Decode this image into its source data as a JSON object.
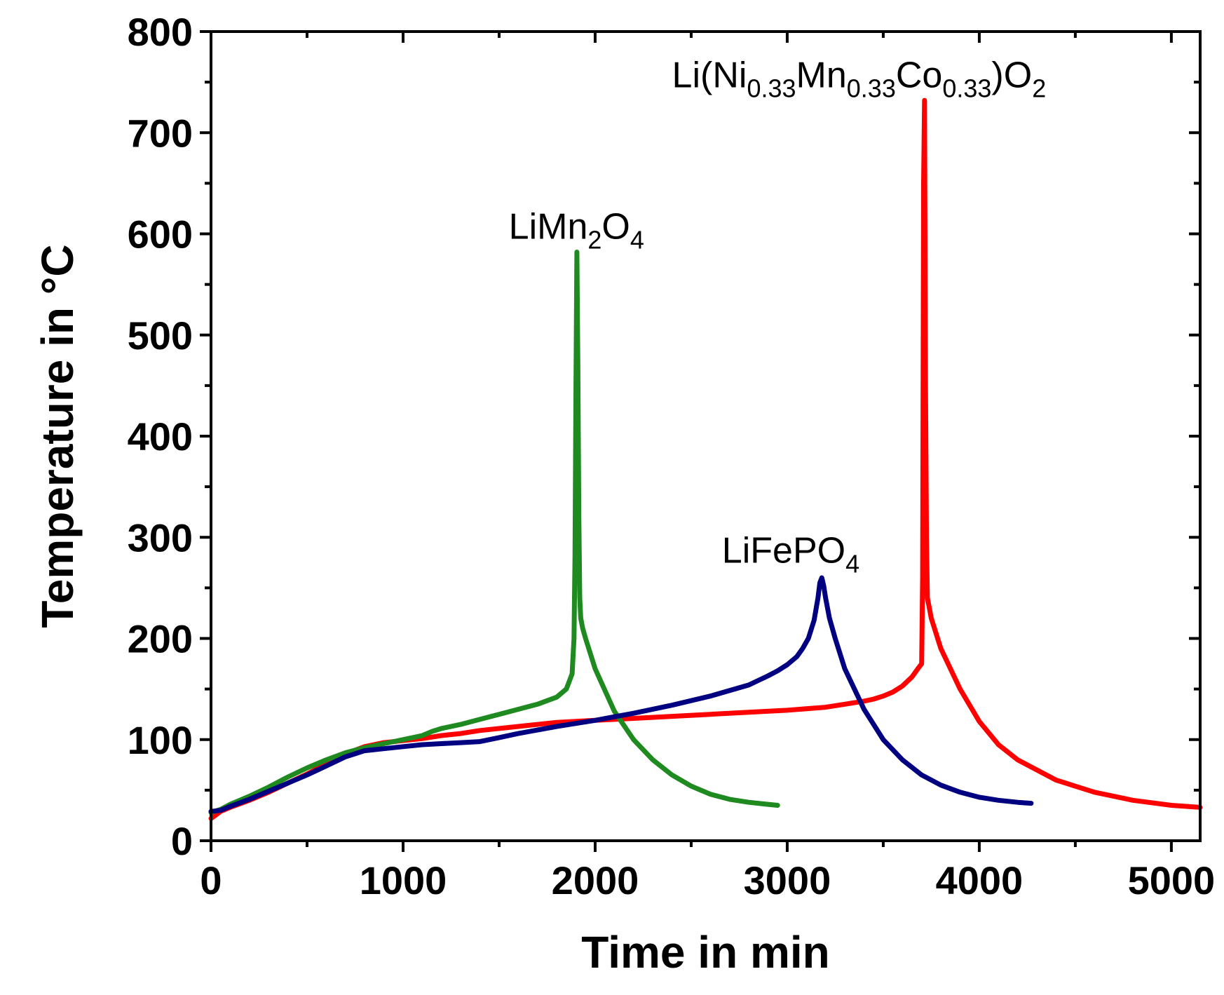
{
  "chart_data": {
    "type": "line",
    "title": "",
    "xlabel": "Time in min",
    "ylabel": "Temperature in °C",
    "xlim": [
      0,
      5150
    ],
    "ylim": [
      0,
      800
    ],
    "xticks": [
      0,
      1000,
      2000,
      3000,
      4000,
      5000
    ],
    "xtick_labels": [
      "0",
      "1000",
      "2000",
      "3000",
      "4000",
      "5000"
    ],
    "yticks": [
      0,
      100,
      200,
      300,
      400,
      500,
      600,
      700,
      800
    ],
    "ytick_labels": [
      "0",
      "100",
      "200",
      "300",
      "400",
      "500",
      "600",
      "700",
      "800"
    ],
    "x_minor_step": 500,
    "y_minor_step": 50,
    "grid": false,
    "legend": "none",
    "series": [
      {
        "name": "Li(Ni0.33Mn0.33Co0.33)O2",
        "label_parts": [
          {
            "t": "Li(Ni",
            "sub": false
          },
          {
            "t": "0.33",
            "sub": true
          },
          {
            "t": "Mn",
            "sub": false
          },
          {
            "t": "0.33",
            "sub": true
          },
          {
            "t": "Co",
            "sub": false
          },
          {
            "t": "0.33",
            "sub": true
          },
          {
            "t": ")O",
            "sub": false
          },
          {
            "t": "2",
            "sub": true
          }
        ],
        "label_at": [
          2400,
          745
        ],
        "color": "#ff0000",
        "x": [
          0,
          50,
          100,
          200,
          300,
          400,
          500,
          600,
          700,
          800,
          900,
          1000,
          1100,
          1200,
          1300,
          1400,
          1600,
          1800,
          2000,
          2200,
          2400,
          2600,
          2800,
          3000,
          3200,
          3300,
          3400,
          3450,
          3500,
          3550,
          3600,
          3650,
          3680,
          3700,
          3705,
          3710,
          3715,
          3720,
          3725,
          3730,
          3740,
          3750,
          3800,
          3900,
          4000,
          4100,
          4200,
          4400,
          4600,
          4800,
          5000,
          5150
        ],
        "y": [
          22,
          29,
          33,
          40,
          48,
          57,
          66,
          76,
          86,
          93,
          97,
          99,
          101,
          104,
          106,
          109,
          113,
          117,
          119,
          121,
          123,
          125,
          127,
          129,
          132,
          135,
          138,
          140,
          143,
          147,
          153,
          162,
          170,
          175,
          260,
          650,
          732,
          450,
          300,
          240,
          230,
          220,
          190,
          150,
          118,
          95,
          80,
          60,
          48,
          40,
          35,
          33
        ]
      },
      {
        "name": "LiMn2O4",
        "label_parts": [
          {
            "t": "LiMn",
            "sub": false
          },
          {
            "t": "2",
            "sub": true
          },
          {
            "t": "O",
            "sub": false
          },
          {
            "t": "4",
            "sub": true
          }
        ],
        "label_at": [
          1550,
          595
        ],
        "color": "#1f8a1f",
        "x": [
          0,
          50,
          100,
          200,
          300,
          400,
          500,
          600,
          700,
          800,
          900,
          1000,
          1100,
          1150,
          1200,
          1300,
          1400,
          1500,
          1600,
          1700,
          1800,
          1850,
          1880,
          1890,
          1895,
          1900,
          1905,
          1910,
          1915,
          1920,
          1925,
          1935,
          1950,
          2000,
          2100,
          2200,
          2300,
          2400,
          2500,
          2600,
          2700,
          2800,
          2900,
          2950
        ],
        "y": [
          28,
          31,
          36,
          44,
          53,
          63,
          72,
          80,
          87,
          92,
          96,
          100,
          104,
          108,
          111,
          115,
          120,
          125,
          130,
          135,
          142,
          150,
          165,
          200,
          280,
          450,
          582,
          470,
          320,
          240,
          220,
          210,
          200,
          170,
          128,
          100,
          80,
          65,
          54,
          46,
          41,
          38,
          36,
          35
        ]
      },
      {
        "name": "LiFePO4",
        "label_parts": [
          {
            "t": "LiFePO",
            "sub": false
          },
          {
            "t": "4",
            "sub": true
          }
        ],
        "label_at": [
          2660,
          275
        ],
        "color": "#000080",
        "x": [
          0,
          50,
          100,
          200,
          300,
          400,
          500,
          600,
          700,
          800,
          900,
          1000,
          1100,
          1200,
          1300,
          1400,
          1500,
          1600,
          1800,
          2000,
          2200,
          2400,
          2600,
          2800,
          2900,
          2950,
          3000,
          3050,
          3080,
          3110,
          3140,
          3160,
          3170,
          3180,
          3190,
          3200,
          3220,
          3250,
          3300,
          3400,
          3500,
          3600,
          3700,
          3800,
          3900,
          4000,
          4100,
          4200,
          4270
        ],
        "y": [
          29,
          30,
          34,
          41,
          49,
          57,
          65,
          74,
          83,
          89,
          91,
          93,
          95,
          96,
          97,
          98,
          102,
          106,
          113,
          119,
          126,
          134,
          143,
          154,
          163,
          168,
          174,
          182,
          190,
          200,
          218,
          240,
          255,
          260,
          252,
          240,
          220,
          200,
          170,
          130,
          100,
          80,
          65,
          55,
          48,
          43,
          40,
          38,
          37
        ]
      }
    ]
  }
}
